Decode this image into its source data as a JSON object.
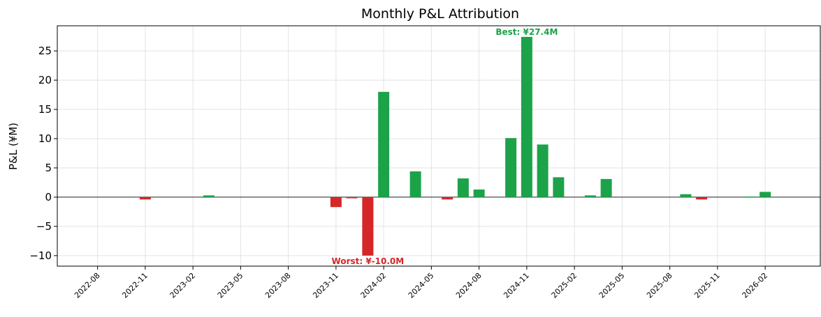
{
  "chart_data": {
    "type": "bar",
    "title": "Monthly P&L Attribution",
    "y_label": "P&L (¥M)",
    "x": [
      "2022-11",
      "2023-03",
      "2023-11",
      "2023-12",
      "2024-01",
      "2024-02",
      "2024-04",
      "2024-06",
      "2024-07",
      "2024-08",
      "2024-10",
      "2024-11",
      "2024-12",
      "2025-01",
      "2025-03",
      "2025-04",
      "2025-09",
      "2025-10",
      "2026-01",
      "2026-02"
    ],
    "values": [
      -0.4,
      0.3,
      -1.7,
      -0.2,
      -10.0,
      18.0,
      4.4,
      -0.4,
      3.2,
      1.3,
      10.1,
      27.4,
      9.0,
      3.4,
      0.3,
      3.1,
      0.5,
      -0.4,
      0.1,
      0.9
    ],
    "positive_color": "#1ca34a",
    "negative_color": "#d62728",
    "annotations": {
      "best": "Best: ¥27.4M",
      "worst": "Worst: ¥-10.0M"
    },
    "xlim": [
      "2022-05-15",
      "2026-05-15"
    ],
    "xticks": [
      "2022-08",
      "2022-11",
      "2023-02",
      "2023-05",
      "2023-08",
      "2023-11",
      "2024-02",
      "2024-05",
      "2024-08",
      "2024-11",
      "2025-02",
      "2025-05",
      "2025-08",
      "2025-11",
      "2026-02"
    ],
    "ylim": [
      -11.8,
      29.3
    ],
    "yticks": [
      {
        "value": -10,
        "label": "−10"
      },
      {
        "value": -5,
        "label": "−5"
      },
      0,
      5,
      10,
      15,
      20,
      25
    ],
    "grid": true
  }
}
